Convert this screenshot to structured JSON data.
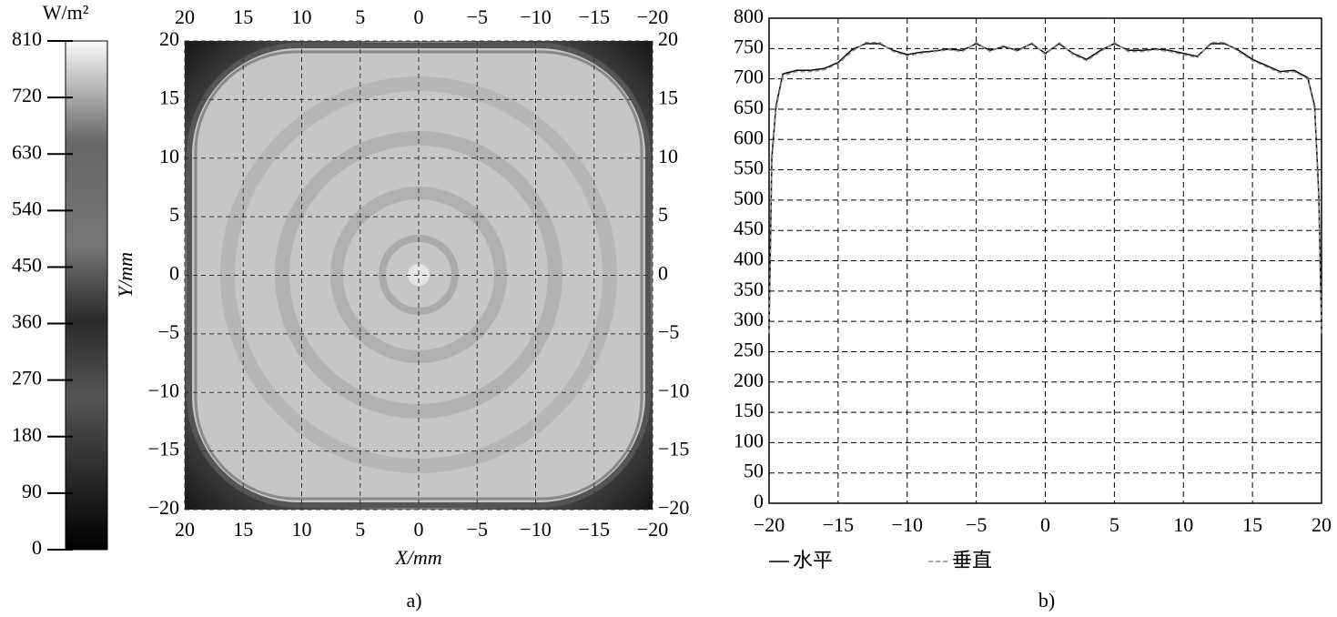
{
  "chart_data": [
    {
      "type": "heatmap",
      "xlabel": "X/mm",
      "ylabel": "Y/mm",
      "caption": "a)",
      "xlim": [
        20,
        -20
      ],
      "ylim": [
        -20,
        20
      ],
      "xticks": [
        20,
        15,
        10,
        5,
        0,
        {
          "value": -5,
          "label": "−5"
        },
        {
          "value": -10,
          "label": "−10"
        },
        {
          "value": -15,
          "label": "−15"
        },
        {
          "value": -20,
          "label": "−20"
        }
      ],
      "yticks": [
        {
          "value": -20,
          "label": "−20"
        },
        {
          "value": -15,
          "label": "−15"
        },
        {
          "value": -10,
          "label": "−10"
        },
        {
          "value": -5,
          "label": "−5"
        },
        0,
        5,
        10,
        15,
        20
      ],
      "grid": true,
      "colorbar_label": "W/m²",
      "zlim": [
        0,
        810
      ],
      "zticks": [
        0,
        90,
        180,
        270,
        360,
        450,
        540,
        630,
        720,
        810
      ]
    },
    {
      "type": "line",
      "caption": "b)",
      "x": [
        -20,
        -19.8,
        -19.5,
        -19,
        -18,
        -17,
        -16,
        -15,
        -14,
        -13,
        -12,
        -11,
        -10,
        -9,
        -8,
        -7,
        -6,
        -5,
        -4,
        -3,
        -2,
        -1,
        0,
        1,
        2,
        3,
        4,
        5,
        6,
        7,
        8,
        9,
        10,
        11,
        12,
        13,
        14,
        15,
        16,
        17,
        18,
        19,
        19.5,
        19.8,
        20
      ],
      "series": [
        {
          "name": "水平",
          "color": "#000000",
          "linestyle": "solid",
          "values": [
            290,
            570,
            655,
            708,
            714,
            714,
            717,
            727,
            748,
            758,
            758,
            747,
            740,
            744,
            746,
            749,
            747,
            758,
            747,
            753,
            747,
            758,
            742,
            758,
            742,
            732,
            747,
            758,
            747,
            747,
            749,
            747,
            742,
            737,
            758,
            758,
            747,
            732,
            722,
            712,
            714,
            702,
            655,
            510,
            290
          ]
        },
        {
          "name": "垂直",
          "color": "#8c8c8c",
          "linestyle": "dashed",
          "values": [
            280,
            560,
            650,
            705,
            712,
            712,
            715,
            725,
            745,
            760,
            760,
            745,
            738,
            742,
            745,
            748,
            745,
            760,
            745,
            755,
            745,
            760,
            740,
            760,
            740,
            730,
            745,
            760,
            745,
            745,
            748,
            745,
            740,
            735,
            760,
            760,
            745,
            730,
            720,
            710,
            712,
            700,
            650,
            500,
            280
          ]
        }
      ],
      "xlim": [
        -20,
        20
      ],
      "ylim": [
        0,
        800
      ],
      "xticks": [
        {
          "value": -20,
          "label": "−20"
        },
        {
          "value": -15,
          "label": "−15"
        },
        {
          "value": -10,
          "label": "−10"
        },
        {
          "value": -5,
          "label": "−5"
        },
        0,
        5,
        10,
        15,
        20
      ],
      "yticks": [
        0,
        50,
        100,
        150,
        200,
        250,
        300,
        350,
        400,
        450,
        500,
        550,
        600,
        650,
        700,
        750,
        800
      ],
      "grid": true
    }
  ]
}
